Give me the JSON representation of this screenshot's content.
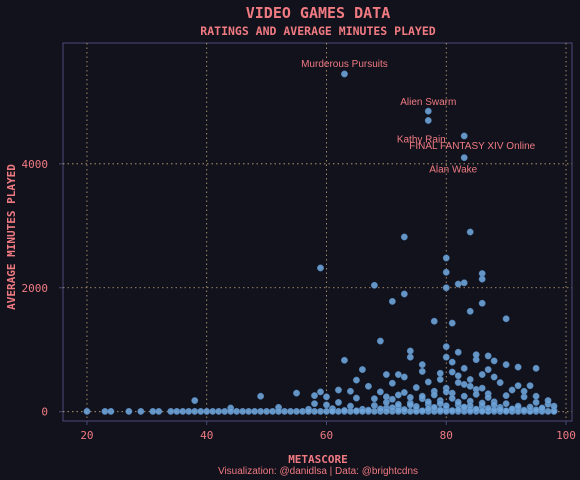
{
  "chart_data": {
    "type": "scatter",
    "title": "VIDEO GAMES DATA",
    "subtitle": "RATINGS AND AVERAGE MINUTES PLAYED",
    "xlabel": "METASCORE",
    "ylabel": "AVERAGE MINUTES PLAYED",
    "caption": "Visualization: @danidlsa | Data: @brightcdns",
    "xlim": [
      16,
      101
    ],
    "ylim": [
      -150,
      5950
    ],
    "xticks": [
      20,
      40,
      60,
      80,
      100
    ],
    "yticks": [
      0,
      2000,
      4000
    ],
    "grid": true,
    "colors": {
      "background": "#12121c",
      "panel_border": "#4a4a78",
      "grid": "#c8a878",
      "point": "#6fa4d8",
      "text": "#f07a82"
    },
    "annotations": [
      {
        "label": "Murderous Pursuits",
        "x": 63,
        "y": 5450
      },
      {
        "label": "Alien Swarm",
        "x": 77,
        "y": 4850
      },
      {
        "label": "Kathy Rain",
        "x": 77,
        "y": 4600
      },
      {
        "label": "FINAL FANTASY XIV Online",
        "x": 83,
        "y": 4450
      },
      {
        "label": "Alan Wake",
        "x": 83,
        "y": 4100
      }
    ],
    "points": [
      [
        63,
        5450
      ],
      [
        77,
        4850
      ],
      [
        77,
        4700
      ],
      [
        83,
        4450
      ],
      [
        83,
        4100
      ],
      [
        84,
        2900
      ],
      [
        73,
        2820
      ],
      [
        59,
        2320
      ],
      [
        80,
        2480
      ],
      [
        80,
        2250
      ],
      [
        86,
        2230
      ],
      [
        86,
        2140
      ],
      [
        68,
        2040
      ],
      [
        82,
        2060
      ],
      [
        83,
        2080
      ],
      [
        80,
        2000
      ],
      [
        73,
        1900
      ],
      [
        71,
        1780
      ],
      [
        86,
        1750
      ],
      [
        84,
        1620
      ],
      [
        90,
        1500
      ],
      [
        81,
        1430
      ],
      [
        78,
        1460
      ],
      [
        69,
        1140
      ],
      [
        74,
        980
      ],
      [
        82,
        960
      ],
      [
        80,
        880
      ],
      [
        87,
        900
      ],
      [
        90,
        760
      ],
      [
        85,
        840
      ],
      [
        81,
        800
      ],
      [
        88,
        820
      ],
      [
        92,
        720
      ],
      [
        95,
        700
      ],
      [
        63,
        830
      ],
      [
        66,
        680
      ],
      [
        70,
        600
      ],
      [
        76,
        650
      ],
      [
        73,
        560
      ],
      [
        79,
        620
      ],
      [
        82,
        580
      ],
      [
        84,
        520
      ],
      [
        86,
        600
      ],
      [
        88,
        560
      ],
      [
        77,
        480
      ],
      [
        71,
        460
      ],
      [
        83,
        440
      ],
      [
        89,
        470
      ],
      [
        94,
        420
      ],
      [
        67,
        410
      ],
      [
        75,
        390
      ],
      [
        80,
        380
      ],
      [
        85,
        360
      ],
      [
        91,
        350
      ],
      [
        78,
        330
      ],
      [
        73,
        310
      ],
      [
        81,
        300
      ],
      [
        87,
        290
      ],
      [
        62,
        350
      ],
      [
        69,
        320
      ],
      [
        90,
        260
      ],
      [
        93,
        240
      ],
      [
        55,
        300
      ],
      [
        49,
        250
      ],
      [
        65,
        220
      ],
      [
        71,
        200
      ],
      [
        76,
        210
      ],
      [
        79,
        180
      ],
      [
        84,
        170
      ],
      [
        88,
        160
      ],
      [
        95,
        150
      ],
      [
        97,
        120
      ],
      [
        38,
        180
      ],
      [
        58,
        130
      ],
      [
        60,
        110
      ],
      [
        64,
        90
      ],
      [
        68,
        100
      ],
      [
        72,
        80
      ],
      [
        74,
        140
      ],
      [
        77,
        120
      ],
      [
        82,
        110
      ],
      [
        86,
        90
      ],
      [
        89,
        70
      ],
      [
        92,
        60
      ],
      [
        96,
        40
      ],
      [
        98,
        20
      ],
      [
        70,
        60
      ],
      [
        78,
        50
      ],
      [
        80,
        40
      ],
      [
        83,
        60
      ],
      [
        85,
        30
      ],
      [
        61,
        50
      ],
      [
        66,
        40
      ],
      [
        75,
        30
      ],
      [
        87,
        20
      ],
      [
        91,
        30
      ],
      [
        94,
        10
      ],
      [
        44,
        60
      ],
      [
        52,
        70
      ],
      [
        57,
        40
      ],
      [
        20,
        5
      ],
      [
        23,
        5
      ],
      [
        24,
        5
      ],
      [
        27,
        5
      ],
      [
        29,
        5
      ],
      [
        31,
        5
      ],
      [
        32,
        5
      ],
      [
        34,
        5
      ],
      [
        35,
        5
      ],
      [
        36,
        5
      ],
      [
        37,
        5
      ],
      [
        38,
        5
      ],
      [
        39,
        5
      ],
      [
        40,
        5
      ],
      [
        41,
        5
      ],
      [
        42,
        5
      ],
      [
        43,
        5
      ],
      [
        44,
        5
      ],
      [
        45,
        5
      ],
      [
        46,
        5
      ],
      [
        47,
        5
      ],
      [
        48,
        5
      ],
      [
        49,
        5
      ],
      [
        50,
        5
      ],
      [
        51,
        5
      ],
      [
        52,
        5
      ],
      [
        53,
        5
      ],
      [
        54,
        5
      ],
      [
        55,
        5
      ],
      [
        56,
        5
      ],
      [
        57,
        5
      ],
      [
        58,
        5
      ],
      [
        59,
        5
      ],
      [
        60,
        5
      ],
      [
        61,
        5
      ],
      [
        62,
        5
      ],
      [
        63,
        5
      ],
      [
        64,
        5
      ],
      [
        65,
        5
      ],
      [
        66,
        5
      ],
      [
        67,
        5
      ],
      [
        68,
        5
      ],
      [
        69,
        5
      ],
      [
        70,
        5
      ],
      [
        71,
        5
      ],
      [
        72,
        5
      ],
      [
        73,
        5
      ],
      [
        74,
        5
      ],
      [
        75,
        5
      ],
      [
        76,
        5
      ],
      [
        77,
        5
      ],
      [
        78,
        5
      ],
      [
        79,
        5
      ],
      [
        80,
        5
      ],
      [
        81,
        5
      ],
      [
        82,
        5
      ],
      [
        83,
        5
      ],
      [
        84,
        5
      ],
      [
        85,
        5
      ],
      [
        86,
        5
      ],
      [
        87,
        5
      ],
      [
        88,
        5
      ],
      [
        89,
        5
      ],
      [
        90,
        5
      ],
      [
        91,
        5
      ],
      [
        92,
        5
      ],
      [
        93,
        5
      ],
      [
        94,
        5
      ],
      [
        95,
        5
      ],
      [
        96,
        5
      ],
      [
        97,
        5
      ],
      [
        98,
        5
      ],
      [
        72,
        20
      ],
      [
        76,
        15
      ],
      [
        79,
        25
      ],
      [
        81,
        18
      ],
      [
        84,
        22
      ],
      [
        86,
        12
      ],
      [
        88,
        28
      ],
      [
        90,
        14
      ],
      [
        73,
        35
      ],
      [
        77,
        45
      ],
      [
        82,
        30
      ],
      [
        85,
        40
      ],
      [
        87,
        55
      ],
      [
        89,
        35
      ],
      [
        91,
        45
      ],
      [
        93,
        25
      ],
      [
        95,
        30
      ],
      [
        83,
        75
      ],
      [
        80,
        95
      ],
      [
        78,
        70
      ],
      [
        75,
        85
      ],
      [
        71,
        65
      ],
      [
        69,
        45
      ],
      [
        67,
        25
      ],
      [
        65,
        15
      ],
      [
        63,
        20
      ],
      [
        61,
        10
      ],
      [
        86,
        140
      ],
      [
        84,
        95
      ],
      [
        82,
        155
      ],
      [
        79,
        130
      ],
      [
        77,
        160
      ],
      [
        74,
        110
      ],
      [
        72,
        120
      ],
      [
        70,
        150
      ],
      [
        88,
        110
      ],
      [
        90,
        130
      ],
      [
        92,
        90
      ],
      [
        94,
        75
      ],
      [
        96,
        60
      ],
      [
        81,
        215
      ],
      [
        83,
        250
      ],
      [
        85,
        280
      ],
      [
        87,
        230
      ],
      [
        80,
        320
      ],
      [
        78,
        270
      ],
      [
        76,
        250
      ],
      [
        74,
        230
      ],
      [
        72,
        270
      ],
      [
        70,
        240
      ],
      [
        68,
        210
      ],
      [
        86,
        380
      ],
      [
        84,
        410
      ],
      [
        82,
        470
      ],
      [
        79,
        520
      ],
      [
        81,
        640
      ],
      [
        83,
        700
      ],
      [
        87,
        680
      ],
      [
        85,
        920
      ],
      [
        80,
        1050
      ],
      [
        76,
        760
      ],
      [
        74,
        880
      ],
      [
        72,
        600
      ],
      [
        65,
        510
      ],
      [
        64,
        330
      ],
      [
        58,
        260
      ],
      [
        92,
        420
      ],
      [
        93,
        330
      ],
      [
        95,
        250
      ],
      [
        97,
        180
      ],
      [
        98,
        90
      ],
      [
        62,
        150
      ],
      [
        60,
        240
      ],
      [
        59,
        320
      ]
    ]
  }
}
